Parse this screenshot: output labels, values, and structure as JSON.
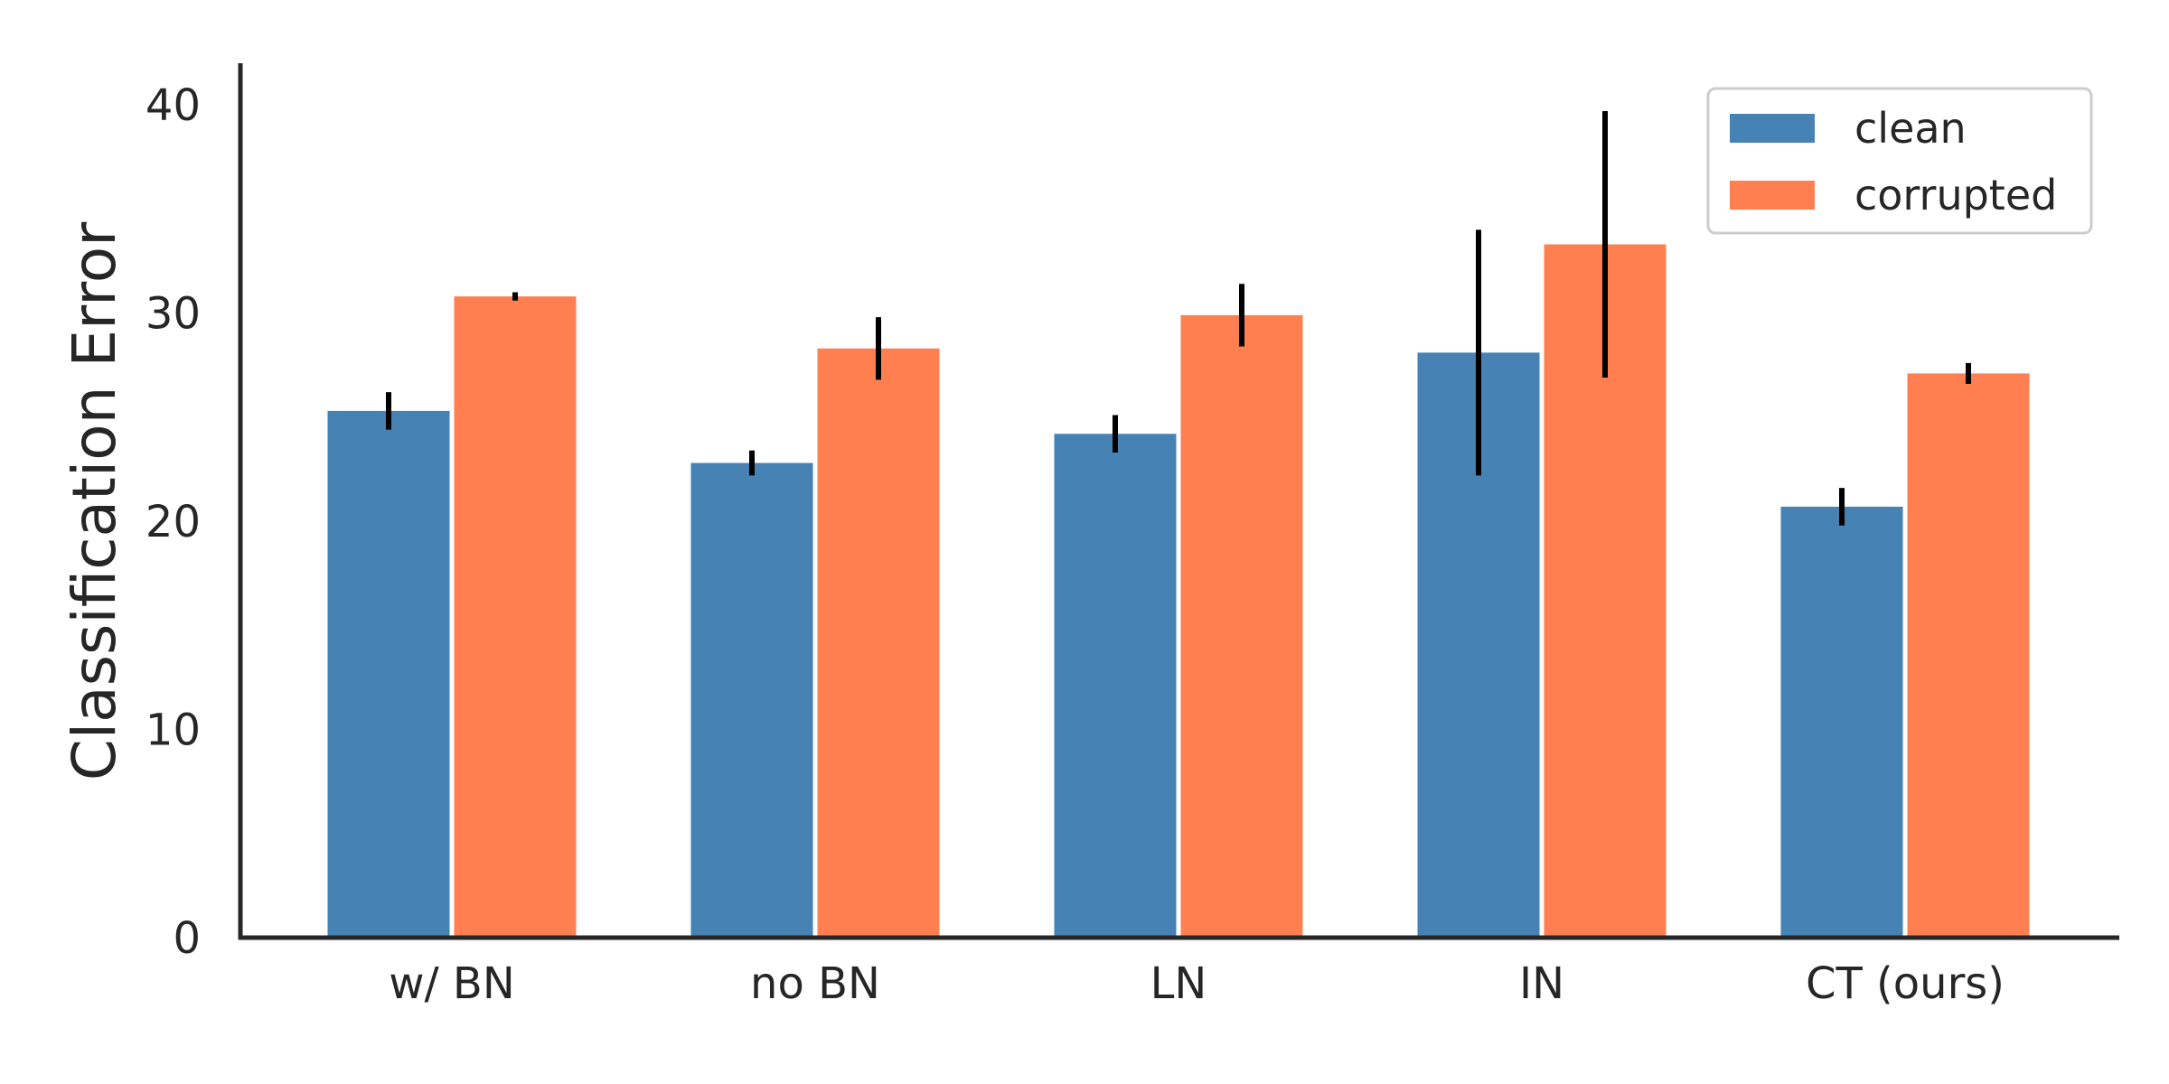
{
  "chart_data": {
    "type": "bar",
    "title": "",
    "xlabel": "",
    "ylabel": "Classification Error",
    "ylim": [
      0,
      42
    ],
    "yticks": [
      0,
      10,
      20,
      30,
      40
    ],
    "grid": false,
    "legend_position": "top-right",
    "categories": [
      "w/ BN",
      "no BN",
      "LN",
      "IN",
      "CT (ours)"
    ],
    "series": [
      {
        "name": "clean",
        "color": "#4682b4",
        "values": [
          25.3,
          22.8,
          24.2,
          28.1,
          20.7
        ],
        "error": [
          0.9,
          0.6,
          0.9,
          5.9,
          0.9
        ]
      },
      {
        "name": "corrupted",
        "color": "#ff7f50",
        "values": [
          30.8,
          28.3,
          29.9,
          33.3,
          27.1
        ],
        "error": [
          0.2,
          1.5,
          1.5,
          6.4,
          0.5
        ]
      }
    ],
    "errorbar_color": "#000000",
    "axis_color": "#262626"
  }
}
